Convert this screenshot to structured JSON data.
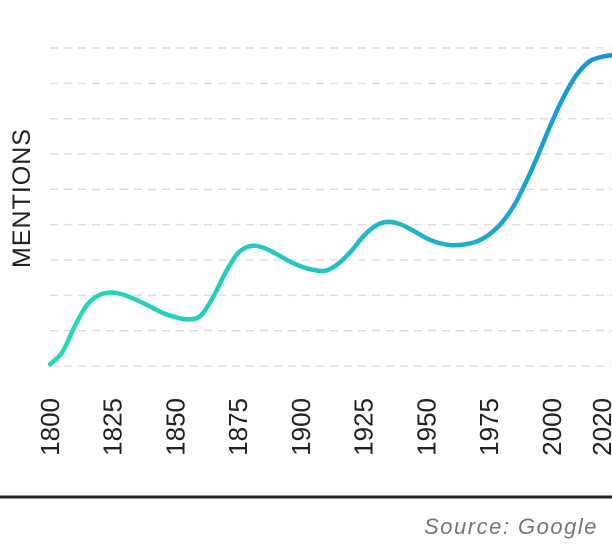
{
  "chart_data": {
    "type": "line",
    "title": "",
    "xlabel": "",
    "ylabel": "MENTIONS",
    "x_ticks": [
      "1800",
      "1825",
      "1850",
      "1875",
      "1900",
      "1925",
      "1950",
      "1975",
      "2000",
      "2020"
    ],
    "xlim": [
      1800,
      2024
    ],
    "ylim": [
      0,
      9
    ],
    "grid": true,
    "legend": "none",
    "colors": {
      "line_start": "#26d9b3",
      "line_end": "#1695d6",
      "grid": "#dddddd",
      "baseline": "#222222"
    },
    "series": [
      {
        "x": [
          1800,
          1805,
          1810,
          1815,
          1820,
          1825,
          1830,
          1835,
          1840,
          1845,
          1850,
          1855,
          1860,
          1865,
          1870,
          1875,
          1880,
          1885,
          1890,
          1895,
          1900,
          1905,
          1910,
          1915,
          1920,
          1925,
          1930,
          1935,
          1940,
          1945,
          1950,
          1955,
          1960,
          1965,
          1970,
          1975,
          1980,
          1985,
          1990,
          1995,
          2000,
          2005,
          2010,
          2015,
          2020,
          2024
        ],
        "y": [
          0.05,
          0.4,
          1.15,
          1.75,
          2.02,
          2.08,
          2.0,
          1.85,
          1.68,
          1.5,
          1.38,
          1.32,
          1.42,
          1.95,
          2.65,
          3.2,
          3.4,
          3.35,
          3.18,
          2.98,
          2.82,
          2.72,
          2.7,
          2.9,
          3.25,
          3.68,
          3.98,
          4.08,
          4.0,
          3.82,
          3.62,
          3.48,
          3.42,
          3.44,
          3.52,
          3.72,
          4.05,
          4.55,
          5.25,
          6.05,
          6.9,
          7.65,
          8.25,
          8.62,
          8.75,
          8.8
        ]
      }
    ]
  },
  "source": "Source: Google"
}
